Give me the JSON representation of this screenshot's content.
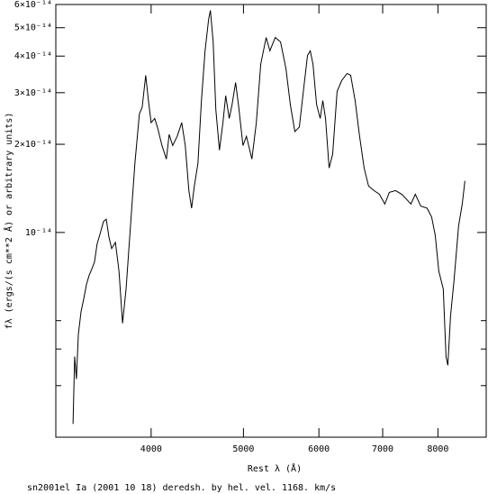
{
  "chart_data": {
    "type": "line",
    "xlabel": "Rest λ (Å)",
    "ylabel": "fλ (ergs/(s cm**2 Å) or arbitrary units)",
    "caption": "sn2001el Ia (2001 10 18) deredsh. by hel. vel.  1168. km/s",
    "xscale": "log",
    "yscale": "log",
    "xlim": [
      3177,
      8990
    ],
    "ylim": [
      2e-15,
      6e-14
    ],
    "xticks": [
      4000,
      5000,
      6000,
      7000,
      8000
    ],
    "yticks": [
      {
        "value": 1e-14,
        "label": "10⁻¹⁴"
      },
      {
        "value": 2e-14,
        "label": "2×10⁻¹⁴"
      },
      {
        "value": 3e-14,
        "label": "3×10⁻¹⁴"
      },
      {
        "value": 4e-14,
        "label": "4×10⁻¹⁴"
      },
      {
        "value": 5e-14,
        "label": "5×10⁻¹⁴"
      },
      {
        "value": 6e-14,
        "label": "6×10⁻¹⁴"
      }
    ],
    "yticks_minor": [
      3e-15,
      4e-15,
      5e-15
    ],
    "color": "#000000",
    "x": [
      3312,
      3325,
      3339,
      3355,
      3377,
      3400,
      3421,
      3443,
      3465,
      3488,
      3510,
      3542,
      3565,
      3589,
      3612,
      3636,
      3669,
      3701,
      3733,
      3765,
      3805,
      3846,
      3888,
      3914,
      3948,
      3974,
      4000,
      4035,
      4061,
      4106,
      4150,
      4178,
      4214,
      4260,
      4307,
      4344,
      4382,
      4411,
      4440,
      4479,
      4517,
      4557,
      4596,
      4616,
      4647,
      4677,
      4718,
      4758,
      4790,
      4831,
      4864,
      4906,
      4940,
      4994,
      5036,
      5103,
      5158,
      5213,
      5282,
      5330,
      5399,
      5469,
      5541,
      5600,
      5661,
      5723,
      5786,
      5837,
      5876,
      5915,
      5967,
      6019,
      6057,
      6097,
      6150,
      6203,
      6270,
      6340,
      6423,
      6479,
      6549,
      6620,
      6693,
      6765,
      6855,
      6945,
      7037,
      7113,
      7221,
      7331,
      7412,
      7494,
      7575,
      7675,
      7793,
      7879,
      7948,
      8017,
      8104,
      8158,
      8194,
      8248,
      8318,
      8409,
      8484,
      8539
    ],
    "values": [
      2.22e-15,
      3.77e-15,
      3.16e-15,
      4.5e-15,
      5.37e-15,
      5.97e-15,
      6.64e-15,
      7.13e-15,
      7.49e-15,
      7.92e-15,
      9.12e-15,
      1.01e-14,
      1.09e-14,
      1.11e-14,
      9.65e-15,
      8.81e-15,
      9.25e-15,
      7.38e-15,
      4.9e-15,
      6.41e-15,
      1.05e-14,
      1.72e-14,
      2.54e-14,
      2.67e-14,
      3.44e-14,
      2.82e-14,
      2.37e-14,
      2.45e-14,
      2.29e-14,
      1.98e-14,
      1.78e-14,
      2.16e-14,
      1.98e-14,
      2.13e-14,
      2.37e-14,
      1.98e-14,
      1.39e-14,
      1.21e-14,
      1.44e-14,
      1.72e-14,
      2.82e-14,
      4.17e-14,
      5.33e-14,
      5.73e-14,
      4.47e-14,
      2.63e-14,
      1.91e-14,
      2.37e-14,
      2.93e-14,
      2.45e-14,
      2.73e-14,
      3.25e-14,
      2.73e-14,
      1.98e-14,
      2.13e-14,
      1.78e-14,
      2.37e-14,
      3.75e-14,
      4.63e-14,
      4.17e-14,
      4.63e-14,
      4.47e-14,
      3.62e-14,
      2.73e-14,
      2.21e-14,
      2.29e-14,
      3.14e-14,
      4.02e-14,
      4.17e-14,
      3.75e-14,
      2.73e-14,
      2.45e-14,
      2.82e-14,
      2.45e-14,
      1.66e-14,
      1.85e-14,
      3.03e-14,
      3.3e-14,
      3.49e-14,
      3.44e-14,
      2.82e-14,
      2.13e-14,
      1.66e-14,
      1.44e-14,
      1.39e-14,
      1.35e-14,
      1.25e-14,
      1.37e-14,
      1.39e-14,
      1.35e-14,
      1.3e-14,
      1.25e-14,
      1.35e-14,
      1.23e-14,
      1.21e-14,
      1.13e-14,
      9.79e-15,
      7.38e-15,
      6.41e-15,
      3.77e-15,
      3.52e-15,
      5.19e-15,
      6.88e-15,
      1.05e-14,
      1.25e-14,
      1.5e-14
    ]
  }
}
